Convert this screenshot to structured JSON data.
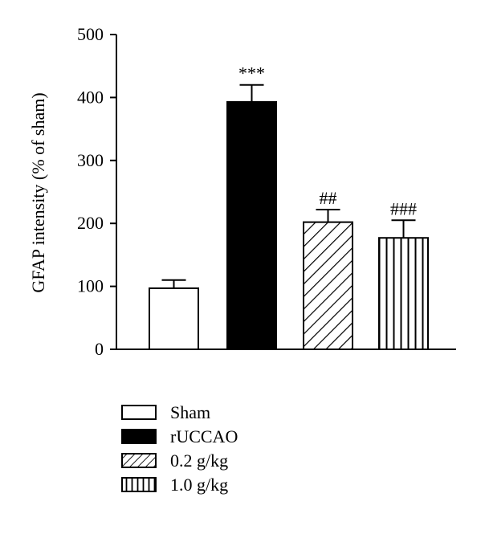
{
  "chart_data": {
    "type": "bar",
    "title": "",
    "xlabel": "",
    "ylabel": "GFAP intensity (% of sham)",
    "ylim": [
      0,
      500
    ],
    "yticks": [
      "0",
      "100",
      "200",
      "300",
      "400",
      "500"
    ],
    "categories": [
      "Sham",
      "rUCCAO",
      "0.2 g/kg",
      "1.0 g/kg"
    ],
    "values": [
      97,
      393,
      202,
      177
    ],
    "error": [
      13,
      27,
      20,
      28
    ],
    "annotations": [
      "",
      "***",
      "##",
      "###"
    ],
    "fills": [
      "open",
      "solid",
      "diagonal",
      "vertical"
    ],
    "grid": false,
    "legend_position": "bottom-left",
    "legend": [
      "Sham",
      "rUCCAO",
      "0.2 g/kg",
      "1.0 g/kg"
    ]
  }
}
